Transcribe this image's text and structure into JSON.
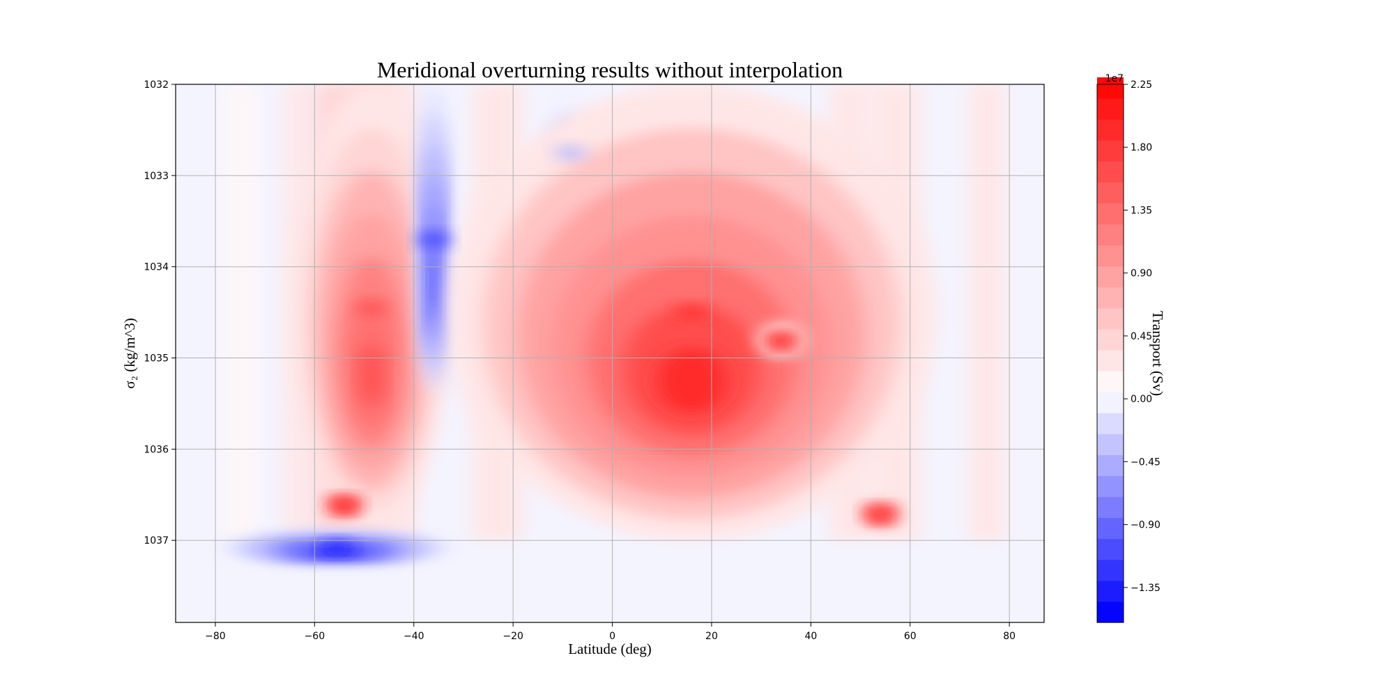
{
  "chart_data": {
    "type": "heatmap",
    "subtype": "filled-contour",
    "title": "Meridional overturning results without interpolation",
    "xlabel": "Latitude (deg)",
    "ylabel": "σ₂ (kg/m^3)",
    "xlim": [
      -88,
      87
    ],
    "ylim": [
      1037.9,
      1032
    ],
    "y_inverted": true,
    "xticks": [
      -80,
      -60,
      -40,
      -20,
      0,
      20,
      40,
      60,
      80
    ],
    "xtick_labels": [
      "−80",
      "−60",
      "−40",
      "−20",
      "0",
      "20",
      "40",
      "60",
      "80"
    ],
    "yticks": [
      1032,
      1033,
      1034,
      1035,
      1036,
      1037
    ],
    "ytick_labels": [
      "1032",
      "1033",
      "1034",
      "1035",
      "1036",
      "1037"
    ],
    "grid": true,
    "colormap": "bwr",
    "colors": {
      "negative": "#0000ff",
      "zero": "#ffffff",
      "positive": "#ff0000"
    },
    "colorbar": {
      "label": "Transport (Sv)",
      "offset_text": "1e7",
      "ticks": [
        -1.35,
        -0.9,
        -0.45,
        0.0,
        0.45,
        0.9,
        1.35,
        1.8,
        2.25
      ],
      "tick_labels": [
        "−1.35",
        "−0.90",
        "−0.45",
        "0.00",
        "0.45",
        "0.90",
        "1.35",
        "1.80",
        "2.25"
      ],
      "scale": 10000000,
      "vmin": -1.6,
      "vmax": 2.25,
      "level_step": 0.15
    },
    "features": [
      {
        "name": "Southern Ocean positive cell",
        "lat_range": [
          -64,
          -33
        ],
        "sigma_range": [
          1032,
          1036.9
        ],
        "peak": 1.55
      },
      {
        "name": "Deep positive maximum",
        "lat": -54,
        "sigma": 1036.6,
        "peak": 1.9
      },
      {
        "name": "Blue vertical column",
        "lat_range": [
          -39,
          -33
        ],
        "sigma_range": [
          1032,
          1035.4
        ],
        "peak": -1.2
      },
      {
        "name": "Antarctic bottom negative cell",
        "lat_range": [
          -78,
          -33
        ],
        "sigma": 1037.08,
        "peak": -1.4
      },
      {
        "name": "Upper tropical negative patch",
        "lat_range": [
          -15,
          -2
        ],
        "sigma_range": [
          1032,
          1033.5
        ],
        "peak": -0.45
      },
      {
        "name": "Main positive overturning cell",
        "lat_range": [
          -33,
          65
        ],
        "sigma_range": [
          1032,
          1037
        ],
        "peak": 1.8
      },
      {
        "name": "Maximum near 34N",
        "lat": 34,
        "sigma": 1034.8,
        "peak": 1.8
      },
      {
        "name": "Deep band maximum",
        "lat": 54,
        "sigma": 1036.7,
        "peak": 1.85
      }
    ]
  }
}
